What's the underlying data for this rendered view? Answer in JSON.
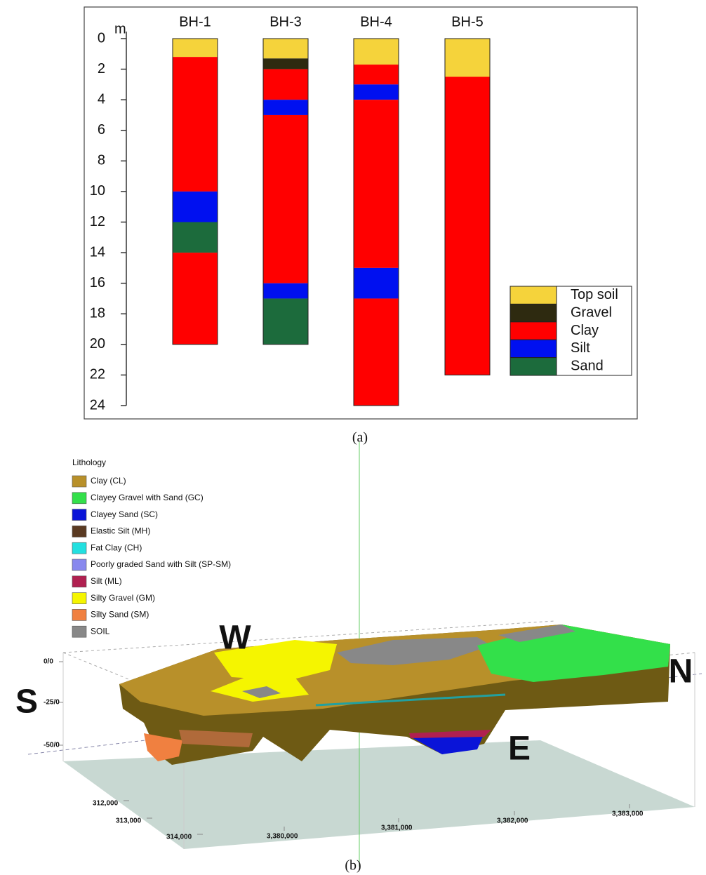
{
  "chart_data": [
    {
      "type": "borehole",
      "y_unit": "m",
      "ylim": [
        0,
        24
      ],
      "yticks": [
        0,
        2,
        4,
        6,
        8,
        10,
        12,
        14,
        16,
        18,
        20,
        22,
        24
      ],
      "legend": [
        {
          "name": "Top soil",
          "color": "#f5d33b"
        },
        {
          "name": "Gravel",
          "color": "#2e2a10"
        },
        {
          "name": "Clay",
          "color": "#ff0000"
        },
        {
          "name": "Silt",
          "color": "#0010f0"
        },
        {
          "name": "Sand",
          "color": "#1c6b3c"
        }
      ],
      "boreholes": [
        {
          "name": "BH-1",
          "layers": [
            {
              "type": 0,
              "thickness": 1.2
            },
            {
              "type": 2,
              "thickness": 8.8
            },
            {
              "type": 3,
              "thickness": 2
            },
            {
              "type": 4,
              "thickness": 2
            },
            {
              "type": 2,
              "thickness": 6
            }
          ]
        },
        {
          "name": "BH-3",
          "layers": [
            {
              "type": 0,
              "thickness": 1.3
            },
            {
              "type": 1,
              "thickness": 0.7
            },
            {
              "type": 2,
              "thickness": 2
            },
            {
              "type": 3,
              "thickness": 1
            },
            {
              "type": 2,
              "thickness": 11
            },
            {
              "type": 3,
              "thickness": 1
            },
            {
              "type": 4,
              "thickness": 3
            }
          ]
        },
        {
          "name": "BH-4",
          "layers": [
            {
              "type": 0,
              "thickness": 1.7
            },
            {
              "type": 2,
              "thickness": 1.3
            },
            {
              "type": 3,
              "thickness": 1
            },
            {
              "type": 2,
              "thickness": 11
            },
            {
              "type": 3,
              "thickness": 2
            },
            {
              "type": 2,
              "thickness": 7
            }
          ]
        },
        {
          "name": "BH-5",
          "layers": [
            {
              "type": 0,
              "thickness": 2.5
            },
            {
              "type": 2,
              "thickness": 19.5
            }
          ]
        }
      ],
      "caption": "(a)"
    },
    {
      "type": "block-model",
      "legend_title": "Lithology",
      "legend": [
        {
          "name": "Clay (CL)",
          "color": "#b8902a"
        },
        {
          "name": "Clayey Gravel with Sand (GC)",
          "color": "#33e04a"
        },
        {
          "name": "Clayey Sand (SC)",
          "color": "#0a14d8"
        },
        {
          "name": "Elastic Silt (MH)",
          "color": "#5a3a22"
        },
        {
          "name": "Fat Clay (CH)",
          "color": "#22e0e0"
        },
        {
          "name": "Poorly graded Sand with Silt (SP-SM)",
          "color": "#8888ee"
        },
        {
          "name": "Silt (ML)",
          "color": "#b02050"
        },
        {
          "name": "Silty Gravel (GM)",
          "color": "#f5f500"
        },
        {
          "name": "Silty Sand (SM)",
          "color": "#f08040"
        },
        {
          "name": "SOIL",
          "color": "#888888"
        }
      ],
      "directions": [
        "W",
        "N",
        "S",
        "E"
      ],
      "zticks": [
        {
          "value": 0,
          "label": "0/0"
        },
        {
          "value": -25,
          "label": "-25/0"
        },
        {
          "value": -50,
          "label": "-50/0"
        }
      ],
      "xticks": [
        {
          "value": 312000,
          "label": "312,000"
        },
        {
          "value": 313000,
          "label": "313,000"
        },
        {
          "value": 314000,
          "label": "314,000"
        }
      ],
      "yticks": [
        {
          "value": 3380000,
          "label": "3,380,000"
        },
        {
          "value": 3381000,
          "label": "3,381,000"
        },
        {
          "value": 3382000,
          "label": "3,382,000"
        },
        {
          "value": 3383000,
          "label": "3,383,000"
        }
      ],
      "caption": "(b)"
    }
  ]
}
